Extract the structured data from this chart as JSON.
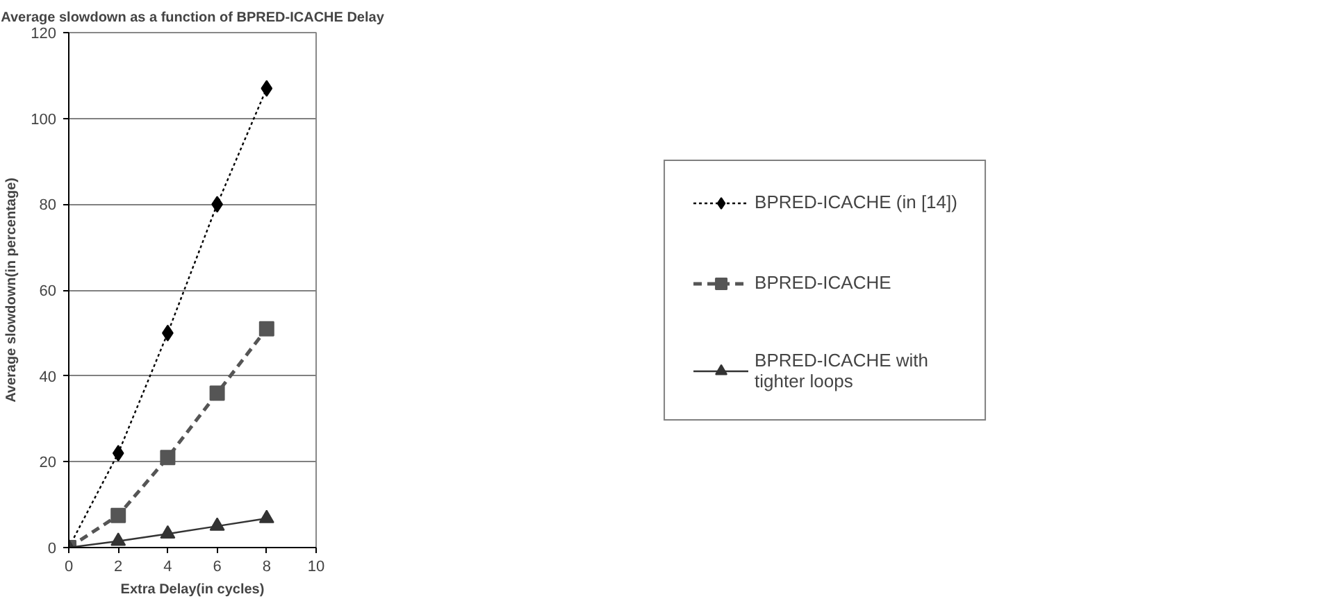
{
  "chart_data": {
    "type": "line",
    "title": "Average slowdown as a function of BPRED-ICACHE Delay",
    "xlabel": "Extra Delay(in cycles)",
    "ylabel": "Average slowdown(in percentage)",
    "x": [
      0,
      2,
      4,
      6,
      8
    ],
    "series": [
      {
        "name": "BPRED-ICACHE (in [14])",
        "color": "#000000",
        "values": [
          0,
          22,
          50,
          80,
          107
        ],
        "marker": "diamond",
        "line_style": "dotted"
      },
      {
        "name": "BPRED-ICACHE",
        "color": "#555555",
        "values": [
          0,
          7.5,
          21,
          36,
          51
        ],
        "marker": "square",
        "line_style": "dashed"
      },
      {
        "name": "BPRED-ICACHE with tighter loops",
        "color": "#333333",
        "values": [
          0,
          1.5,
          3.2,
          5,
          6.8
        ],
        "marker": "triangle",
        "line_style": "solid"
      }
    ],
    "xlim": [
      0,
      10
    ],
    "xticks": [
      0,
      2,
      4,
      6,
      8,
      10
    ],
    "ylim": [
      0,
      120
    ],
    "yticks": [
      0,
      20,
      40,
      60,
      80,
      100,
      120
    ],
    "grid": "y",
    "legend": "right"
  }
}
